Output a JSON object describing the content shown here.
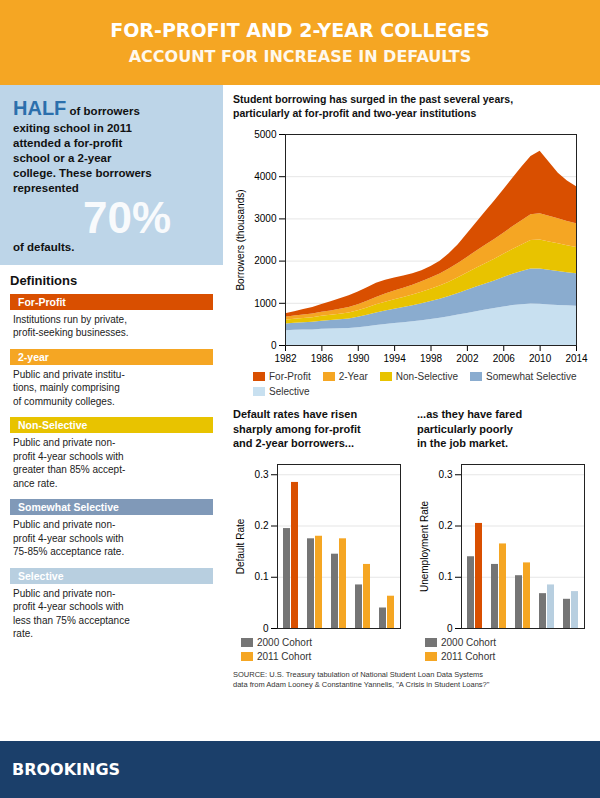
{
  "title": "FOR-PROFIT AND 2-YEAR COLLEGES",
  "subtitle": "ACCOUNT FOR INCREASE IN DEFAULTS",
  "annotations": [
    {
      "text": "HALF"
    },
    {
      "text": "of borrowers\nexiting school in 2011\nattended a for-profit\nschool or a 2-year\ncollege. These borrowers\nrepresented"
    },
    {
      "text": "70%"
    },
    {
      "text": "of defaults."
    },
    {
      "text": "Definitions"
    },
    {
      "label": "For-Profit",
      "color": "#D94F00",
      "text": "Institutions run by private,\nprofit-seeking businesses."
    },
    {
      "label": "2-year",
      "color": "#F5A623",
      "text": "Public and private institu-\ntions, mainly comprising\nof community colleges."
    },
    {
      "label": "Non-Selective",
      "color": "#E8C300",
      "text": "Public and private non-\nprofit 4-year schools with\ngreater than 85% accept-\nance rate."
    },
    {
      "label": "Somewhat Selective",
      "color": "#8099B8",
      "text": "Public and private non-\nprofit 4-year schools with\n75-85% acceptance rate."
    },
    {
      "label": "Selective",
      "color": "#B8CFE0",
      "text": "Public and private non-\nprofit 4-year schools with\nless than 75% acceptance\nrate."
    },
    {
      "text": "BROOKINGS"
    },
    {
      "text": "SOURCE: U.S. Treasury tabulation of National Student Loan Data Systems\ndata from Adam Looney & Constantine Yannelis, \"A Crisis in Student Loans?\""
    }
  ],
  "chart_data": [
    {
      "type": "area",
      "stacked": true,
      "title": "Student borrowing has surged in the past several years,\nparticularly at for-profit and two-year institutions",
      "x": [
        1982,
        1983,
        1984,
        1985,
        1986,
        1987,
        1988,
        1989,
        1990,
        1991,
        1992,
        1993,
        1994,
        1995,
        1996,
        1997,
        1998,
        1999,
        2000,
        2001,
        2002,
        2003,
        2004,
        2005,
        2006,
        2007,
        2008,
        2009,
        2010,
        2011,
        2012,
        2013,
        2014
      ],
      "xlim": [
        1982,
        2014
      ],
      "xticks": [
        1982,
        1986,
        1990,
        1994,
        1998,
        2002,
        2006,
        2010,
        2014
      ],
      "ylim": [
        0,
        5000
      ],
      "yticks": [
        0,
        1000,
        2000,
        3000,
        4000,
        5000
      ],
      "ylabel": "Borrowers (thousands)",
      "grid": true,
      "legend": "bottom",
      "series": [
        {
          "name": "Selective",
          "color": "#C8E0F0",
          "values": [
            350,
            360,
            365,
            370,
            385,
            390,
            395,
            400,
            420,
            445,
            475,
            500,
            520,
            540,
            560,
            585,
            615,
            645,
            680,
            720,
            760,
            800,
            840,
            875,
            910,
            945,
            965,
            985,
            975,
            960,
            950,
            940,
            930
          ]
        },
        {
          "name": "Somewhat Selective",
          "color": "#8AACCF",
          "values": [
            160,
            168,
            175,
            182,
            192,
            200,
            215,
            230,
            248,
            272,
            298,
            320,
            340,
            358,
            380,
            402,
            425,
            450,
            480,
            515,
            550,
            585,
            620,
            655,
            700,
            745,
            790,
            830,
            840,
            825,
            805,
            785,
            770
          ]
        },
        {
          "name": "Non-Selective",
          "color": "#E8C300",
          "values": [
            90,
            97,
            102,
            108,
            116,
            124,
            133,
            143,
            156,
            172,
            190,
            207,
            223,
            238,
            254,
            272,
            292,
            314,
            340,
            372,
            408,
            445,
            480,
            515,
            550,
            585,
            628,
            672,
            685,
            670,
            655,
            638,
            622
          ]
        },
        {
          "name": "2-Year",
          "color": "#F5A623",
          "values": [
            70,
            76,
            81,
            87,
            95,
            104,
            115,
            127,
            140,
            157,
            175,
            192,
            208,
            222,
            236,
            252,
            269,
            287,
            310,
            338,
            370,
            403,
            436,
            468,
            502,
            538,
            576,
            614,
            625,
            610,
            594,
            578,
            562
          ]
        },
        {
          "name": "For-Profit",
          "color": "#D94F00",
          "values": [
            80,
            100,
            130,
            155,
            185,
            218,
            252,
            278,
            305,
            322,
            338,
            328,
            308,
            288,
            272,
            262,
            272,
            302,
            362,
            442,
            558,
            678,
            796,
            912,
            1028,
            1148,
            1270,
            1378,
            1478,
            1278,
            1078,
            958,
            878
          ]
        }
      ]
    },
    {
      "type": "bar",
      "title": "Default rates have risen\nsharply among for-profit\nand 2-year borrowers...",
      "categories": [
        null,
        null,
        null,
        null,
        null
      ],
      "tick_labels": "y",
      "ylim": [
        0,
        0.32
      ],
      "yticks": [
        0,
        0.1,
        0.2,
        0.3
      ],
      "ylabel": "Default Rate",
      "grid": true,
      "legend": "bottom",
      "series": [
        {
          "name": "2000 Cohort",
          "color": "#757575",
          "values": [
            0.195,
            0.175,
            0.145,
            0.085,
            0.04
          ]
        },
        {
          "name": "2011 Cohort",
          "color": "#F5A623",
          "colors": [
            "#D94F00",
            "#F5A623",
            "#F5A623",
            "#F5A623",
            "#F5A623"
          ],
          "values": [
            0.285,
            0.18,
            0.175,
            0.125,
            0.063
          ]
        }
      ]
    },
    {
      "type": "bar",
      "title": "...as they have fared\nparticularly poorly\nin the job market.",
      "categories": [
        null,
        null,
        null,
        null,
        null
      ],
      "tick_labels": "y",
      "ylim": [
        0,
        0.32
      ],
      "yticks": [
        0,
        0.1,
        0.2,
        0.3
      ],
      "ylabel": "Unemployment Rate",
      "grid": true,
      "legend": "bottom",
      "series": [
        {
          "name": "2000 Cohort",
          "color": "#757575",
          "values": [
            0.14,
            0.125,
            0.103,
            0.068,
            0.057
          ]
        },
        {
          "name": "2011 Cohort",
          "color": "#F5A623",
          "colors": [
            "#D94F00",
            "#F5A623",
            "#F5A623",
            "#B8CFE0",
            "#B8CFE0"
          ],
          "values": [
            0.205,
            0.165,
            0.128,
            0.085,
            0.072
          ]
        }
      ]
    }
  ]
}
